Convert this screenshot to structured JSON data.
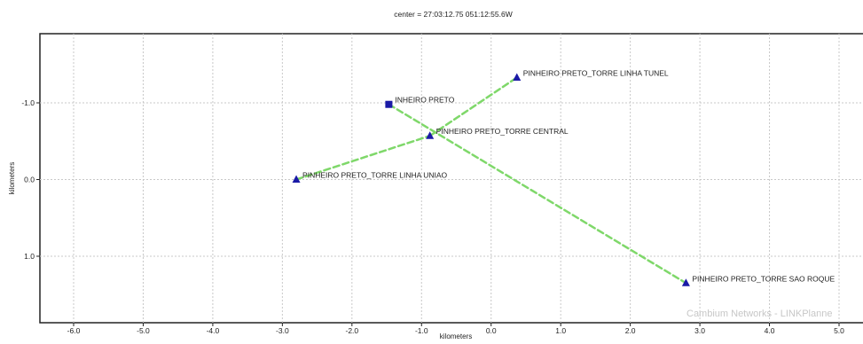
{
  "chart_data": {
    "type": "scatter",
    "title": "center = 27:03:12.75 051:12:55.6W",
    "xlabel": "kilometers",
    "ylabel": "kilometers",
    "xlim": [
      -6.4,
      5.3
    ],
    "ylim": [
      -1.95,
      1.9
    ],
    "y_inverted": true,
    "xticks": [
      -6.0,
      -5.0,
      -4.0,
      -3.0,
      -2.0,
      -1.0,
      0.0,
      1.0,
      2.0,
      3.0,
      4.0,
      5.0
    ],
    "xtick_labels": [
      "-6.0",
      "-5.0",
      "-4.0",
      "-3.0",
      "-2.0",
      "-1.0",
      "0.0",
      "1.0",
      "2.0",
      "3.0",
      "4.0",
      "5.0"
    ],
    "yticks": [
      -1.0,
      0.0,
      1.0
    ],
    "ytick_labels": [
      "-1.0",
      "0.0",
      "1.0"
    ],
    "grid": true,
    "points": [
      {
        "name": "INHEIRO PRETO",
        "x": -1.47,
        "y": -0.98,
        "marker": "square"
      },
      {
        "name": "PINHEIRO PRETO_TORRE LINHA TUNEL",
        "x": 0.37,
        "y": -1.33,
        "marker": "triangle"
      },
      {
        "name": "PINHEIRO PRETO_TORRE CENTRAL",
        "x": -0.88,
        "y": -0.57,
        "marker": "triangle"
      },
      {
        "name": "PINHEIRO PRETO_TORRE LINHA UNIAO",
        "x": -2.8,
        "y": 0.0,
        "marker": "triangle"
      },
      {
        "name": "PINHEIRO PRETO_TORRE SAO ROQUE",
        "x": 2.8,
        "y": 1.35,
        "marker": "triangle"
      }
    ],
    "links": [
      {
        "from": "PINHEIRO PRETO_TORRE LINHA UNIAO",
        "to": "PINHEIRO PRETO_TORRE CENTRAL"
      },
      {
        "from": "PINHEIRO PRETO_TORRE CENTRAL",
        "to": "PINHEIRO PRETO_TORRE LINHA TUNEL"
      },
      {
        "from": "INHEIRO PRETO",
        "to": "PINHEIRO PRETO_TORRE SAO ROQUE"
      }
    ],
    "watermark": "Cambium Networks - LINKPlanne",
    "colors": {
      "marker": "#1a1aa6",
      "link": "#7fd86a",
      "grid": "#c8c8c8",
      "axis": "#222222",
      "watermark": "#c7c7c7"
    }
  }
}
